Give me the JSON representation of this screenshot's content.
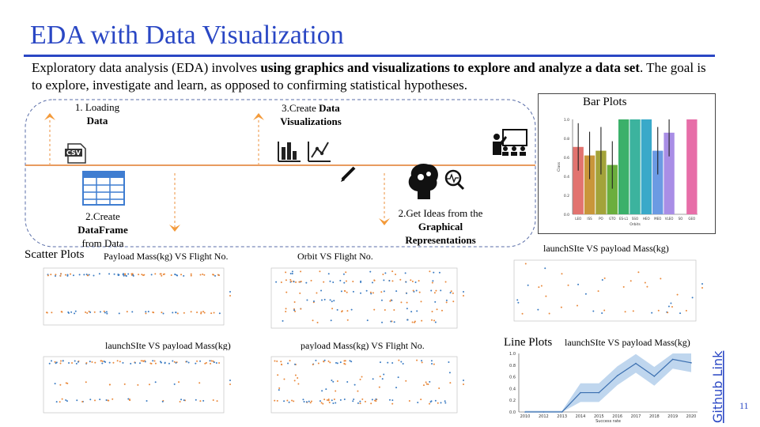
{
  "slide": {
    "title": "EDA with Data Visualization",
    "intro_part1": "Exploratory data analysis (EDA) involves ",
    "intro_bold": "using graphics and visualizations to explore and analyze a data set",
    "intro_part2": ". The goal is to explore, investigate and learn, as opposed to confirming statistical hypotheses.",
    "page_number": "11",
    "github_link": "Github Link",
    "accent_color": "#2a47c4",
    "flow_color": "#e07a2a"
  },
  "workflow": {
    "step1_line1": "1. Loading",
    "step1_bold": "Data",
    "step2_line1": "2.Create",
    "step2_bold": "DataFrame",
    "step2_line3": "from Data",
    "step3_line1": "3.Create ",
    "step3_bold1": "Data",
    "step3_bold2": "Visualizations",
    "step4_line1": "2.Get Ideas from the",
    "step4_bold1": "Graphical",
    "step4_bold2": "Representations",
    "icons": [
      "csv-icon",
      "table-icon",
      "bar-chart-icon",
      "line-chart-icon",
      "pencil-icon",
      "brain-gears-icon",
      "presentation-icon"
    ]
  },
  "labels": {
    "scatter_plots": "Scatter Plots",
    "bar_plots": "Bar Plots",
    "line_plots": "Line Plots",
    "sc1_title": "Payload Mass(kg) VS Flight No.",
    "sc2_title": "Orbit VS Flight No.",
    "sc3_title": "launchSIte VS payload Mass(kg)",
    "sc4_title": "payload Mass(kg) VS Flight No.",
    "sc5_title": "launchSIte VS payload Mass(kg)",
    "line_title": "launchSIte VS payload Mass(kg)"
  },
  "chart_data": [
    {
      "type": "bar",
      "categories": [
        "LEO",
        "ISS",
        "PO",
        "GTO",
        "ES-L1",
        "SSO",
        "HEO",
        "MEO",
        "VLEO",
        "SO",
        "GEO"
      ],
      "values": [
        0.71,
        0.62,
        0.67,
        0.52,
        1.0,
        1.0,
        1.0,
        0.67,
        0.86,
        0.0,
        1.0
      ],
      "colors": [
        "#e2736f",
        "#c9963a",
        "#a3a33a",
        "#6bae3d",
        "#3bb06a",
        "#3cb39e",
        "#39a9c9",
        "#6b9ae3",
        "#a98ee6",
        "#dd72d8",
        "#e76ea8"
      ],
      "xlabel": "Orbits",
      "ylabel": "Class",
      "ylim": [
        0,
        1.0
      ],
      "yticks": [
        "0.0",
        "0.2",
        "0.4",
        "0.6",
        "0.8",
        "1.0"
      ]
    },
    {
      "type": "line",
      "x": [
        "2010",
        "2012",
        "2013",
        "2014",
        "2015",
        "2016",
        "2017",
        "2018",
        "2019",
        "2020"
      ],
      "values": [
        0.0,
        0.0,
        0.0,
        0.33,
        0.33,
        0.62,
        0.83,
        0.61,
        0.9,
        0.84
      ],
      "xlabel": "Success rate",
      "ylim": [
        0,
        1.0
      ],
      "yticks": [
        "0.0",
        "0.2",
        "0.4",
        "0.6",
        "0.8",
        "1.0"
      ]
    }
  ]
}
